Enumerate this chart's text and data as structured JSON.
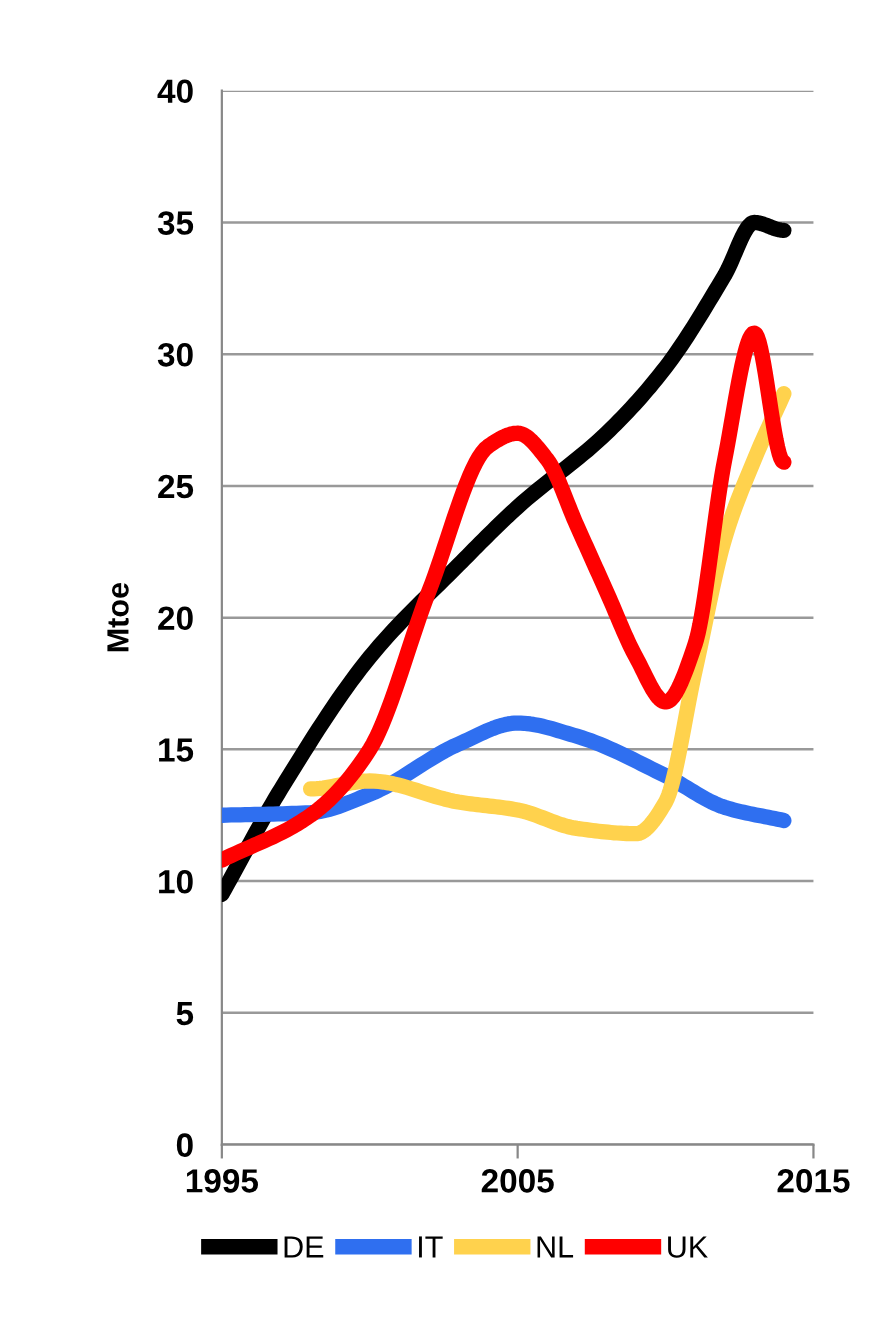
{
  "chart_data": {
    "type": "line",
    "ylabel": "Mtoe",
    "xlim": [
      1995,
      2015
    ],
    "xticks": [
      1995,
      2005,
      2015
    ],
    "ylim": [
      0,
      40
    ],
    "yticks": [
      0,
      5,
      10,
      15,
      20,
      25,
      30,
      35,
      40
    ],
    "grid": "y",
    "legend": "bottom",
    "marker": "none",
    "line_style": "solid",
    "series": [
      {
        "name": "DE",
        "color": "#000000",
        "x": [
          1995,
          1997,
          2000,
          2003,
          2005,
          2008,
          2010,
          2012,
          2013,
          2014
        ],
        "values": [
          9.5,
          13.5,
          18.5,
          22,
          24.2,
          27,
          29.5,
          33,
          35,
          34.7
        ]
      },
      {
        "name": "IT",
        "color": "#2f6ff0",
        "x": [
          1995,
          1998,
          2000,
          2003,
          2005,
          2007,
          2010,
          2012,
          2014
        ],
        "values": [
          12.5,
          12.6,
          13.3,
          15.2,
          16,
          15.5,
          14,
          12.8,
          12.3
        ]
      },
      {
        "name": "NL",
        "color": "#ffd24d",
        "x": [
          1998,
          2000,
          2003,
          2005,
          2007,
          2009,
          2010,
          2011,
          2012,
          2013,
          2014
        ],
        "values": [
          13.5,
          13.8,
          13,
          12.7,
          12,
          11.8,
          13,
          18,
          23,
          26,
          28.5
        ]
      },
      {
        "name": "UK",
        "color": "#ff0000",
        "x": [
          1995,
          1998,
          2000,
          2002,
          2004,
          2005,
          2006,
          2007,
          2008,
          2009,
          2010,
          2011,
          2012,
          2013,
          2014
        ],
        "values": [
          10.8,
          12.5,
          15,
          21,
          26.5,
          27,
          26,
          23.5,
          21,
          18.5,
          16.8,
          19,
          26,
          30.8,
          25.9
        ]
      }
    ]
  }
}
